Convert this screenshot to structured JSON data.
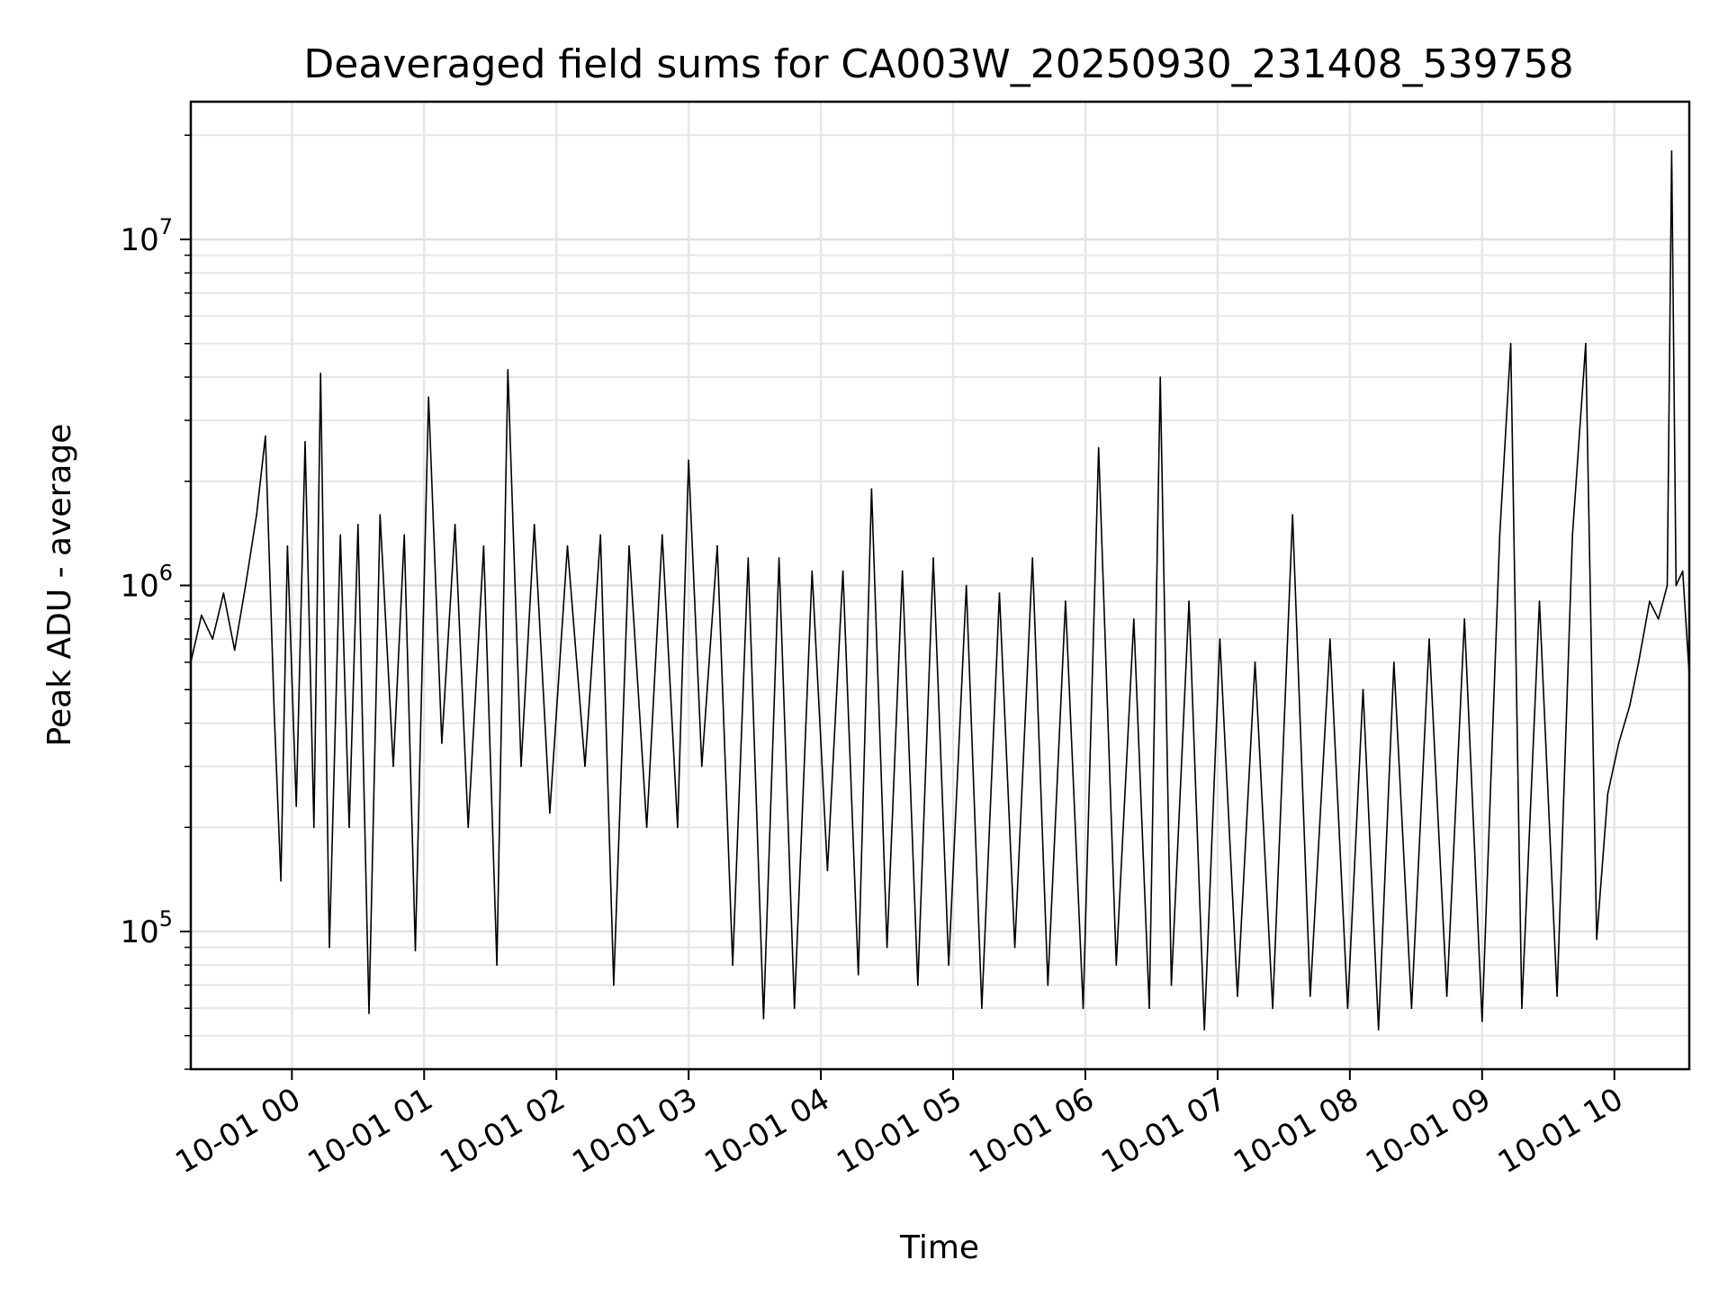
{
  "chart_data": {
    "type": "line",
    "title": "Deaveraged field sums for CA003W_20250930_231408_539758",
    "xlabel": "Time",
    "ylabel": "Peak ADU - average",
    "yscale": "log",
    "ylim": [
      40000,
      25000000
    ],
    "xlim": [
      "2025-09-30T23:14:08",
      "2025-10-01T10:34:00"
    ],
    "grid": true,
    "x_ticks": [
      {
        "value": "2025-10-01T00:00:00",
        "label": "10-01 00"
      },
      {
        "value": "2025-10-01T01:00:00",
        "label": "10-01 01"
      },
      {
        "value": "2025-10-01T02:00:00",
        "label": "10-01 02"
      },
      {
        "value": "2025-10-01T03:00:00",
        "label": "10-01 03"
      },
      {
        "value": "2025-10-01T04:00:00",
        "label": "10-01 04"
      },
      {
        "value": "2025-10-01T05:00:00",
        "label": "10-01 05"
      },
      {
        "value": "2025-10-01T06:00:00",
        "label": "10-01 06"
      },
      {
        "value": "2025-10-01T07:00:00",
        "label": "10-01 07"
      },
      {
        "value": "2025-10-01T08:00:00",
        "label": "10-01 08"
      },
      {
        "value": "2025-10-01T09:00:00",
        "label": "10-01 09"
      },
      {
        "value": "2025-10-01T10:00:00",
        "label": "10-01 10"
      }
    ],
    "y_ticks": [
      {
        "value": 100000,
        "base": "10",
        "exp": "5"
      },
      {
        "value": 1000000,
        "base": "10",
        "exp": "6"
      },
      {
        "value": 10000000,
        "base": "10",
        "exp": "7"
      }
    ],
    "series": [
      {
        "color": "#000000",
        "points": [
          [
            "2025-09-30T23:14:08",
            600000
          ],
          [
            "2025-09-30T23:19:00",
            820000
          ],
          [
            "2025-09-30T23:24:00",
            700000
          ],
          [
            "2025-09-30T23:29:00",
            950000
          ],
          [
            "2025-09-30T23:34:00",
            650000
          ],
          [
            "2025-09-30T23:39:00",
            1000000
          ],
          [
            "2025-09-30T23:44:00",
            1600000
          ],
          [
            "2025-09-30T23:48:00",
            2700000
          ],
          [
            "2025-09-30T23:52:00",
            430000
          ],
          [
            "2025-09-30T23:55:00",
            140000
          ],
          [
            "2025-09-30T23:58:00",
            1300000
          ],
          [
            "2025-10-01T00:02:00",
            230000
          ],
          [
            "2025-10-01T00:06:00",
            2600000
          ],
          [
            "2025-10-01T00:10:00",
            200000
          ],
          [
            "2025-10-01T00:13:00",
            4100000
          ],
          [
            "2025-10-01T00:17:00",
            90000
          ],
          [
            "2025-10-01T00:22:00",
            1400000
          ],
          [
            "2025-10-01T00:26:00",
            200000
          ],
          [
            "2025-10-01T00:30:00",
            1500000
          ],
          [
            "2025-10-01T00:35:00",
            58000
          ],
          [
            "2025-10-01T00:40:00",
            1600000
          ],
          [
            "2025-10-01T00:46:00",
            300000
          ],
          [
            "2025-10-01T00:51:00",
            1400000
          ],
          [
            "2025-10-01T00:56:00",
            88000
          ],
          [
            "2025-10-01T01:02:00",
            3500000
          ],
          [
            "2025-10-01T01:08:00",
            350000
          ],
          [
            "2025-10-01T01:14:00",
            1500000
          ],
          [
            "2025-10-01T01:20:00",
            200000
          ],
          [
            "2025-10-01T01:27:00",
            1300000
          ],
          [
            "2025-10-01T01:33:00",
            80000
          ],
          [
            "2025-10-01T01:38:00",
            4200000
          ],
          [
            "2025-10-01T01:44:00",
            300000
          ],
          [
            "2025-10-01T01:50:00",
            1500000
          ],
          [
            "2025-10-01T01:57:00",
            220000
          ],
          [
            "2025-10-01T02:05:00",
            1300000
          ],
          [
            "2025-10-01T02:13:00",
            300000
          ],
          [
            "2025-10-01T02:20:00",
            1400000
          ],
          [
            "2025-10-01T02:26:00",
            70000
          ],
          [
            "2025-10-01T02:33:00",
            1300000
          ],
          [
            "2025-10-01T02:41:00",
            200000
          ],
          [
            "2025-10-01T02:48:00",
            1400000
          ],
          [
            "2025-10-01T02:55:00",
            200000
          ],
          [
            "2025-10-01T03:00:00",
            2300000
          ],
          [
            "2025-10-01T03:06:00",
            300000
          ],
          [
            "2025-10-01T03:13:00",
            1300000
          ],
          [
            "2025-10-01T03:20:00",
            80000
          ],
          [
            "2025-10-01T03:27:00",
            1200000
          ],
          [
            "2025-10-01T03:34:00",
            56000
          ],
          [
            "2025-10-01T03:41:00",
            1200000
          ],
          [
            "2025-10-01T03:48:00",
            60000
          ],
          [
            "2025-10-01T03:56:00",
            1100000
          ],
          [
            "2025-10-01T04:03:00",
            150000
          ],
          [
            "2025-10-01T04:10:00",
            1100000
          ],
          [
            "2025-10-01T04:17:00",
            75000
          ],
          [
            "2025-10-01T04:23:00",
            1900000
          ],
          [
            "2025-10-01T04:30:00",
            90000
          ],
          [
            "2025-10-01T04:37:00",
            1100000
          ],
          [
            "2025-10-01T04:44:00",
            70000
          ],
          [
            "2025-10-01T04:51:00",
            1200000
          ],
          [
            "2025-10-01T04:58:00",
            80000
          ],
          [
            "2025-10-01T05:06:00",
            1000000
          ],
          [
            "2025-10-01T05:13:00",
            60000
          ],
          [
            "2025-10-01T05:21:00",
            950000
          ],
          [
            "2025-10-01T05:28:00",
            90000
          ],
          [
            "2025-10-01T05:36:00",
            1200000
          ],
          [
            "2025-10-01T05:43:00",
            70000
          ],
          [
            "2025-10-01T05:51:00",
            900000
          ],
          [
            "2025-10-01T05:59:00",
            60000
          ],
          [
            "2025-10-01T06:06:00",
            2500000
          ],
          [
            "2025-10-01T06:14:00",
            80000
          ],
          [
            "2025-10-01T06:22:00",
            800000
          ],
          [
            "2025-10-01T06:29:00",
            60000
          ],
          [
            "2025-10-01T06:34:00",
            4000000
          ],
          [
            "2025-10-01T06:39:00",
            70000
          ],
          [
            "2025-10-01T06:47:00",
            900000
          ],
          [
            "2025-10-01T06:54:00",
            52000
          ],
          [
            "2025-10-01T07:01:00",
            700000
          ],
          [
            "2025-10-01T07:09:00",
            65000
          ],
          [
            "2025-10-01T07:17:00",
            600000
          ],
          [
            "2025-10-01T07:25:00",
            60000
          ],
          [
            "2025-10-01T07:34:00",
            1600000
          ],
          [
            "2025-10-01T07:42:00",
            65000
          ],
          [
            "2025-10-01T07:51:00",
            700000
          ],
          [
            "2025-10-01T07:59:00",
            60000
          ],
          [
            "2025-10-01T08:06:00",
            500000
          ],
          [
            "2025-10-01T08:13:00",
            52000
          ],
          [
            "2025-10-01T08:20:00",
            600000
          ],
          [
            "2025-10-01T08:28:00",
            60000
          ],
          [
            "2025-10-01T08:36:00",
            700000
          ],
          [
            "2025-10-01T08:44:00",
            65000
          ],
          [
            "2025-10-01T08:52:00",
            800000
          ],
          [
            "2025-10-01T09:00:00",
            55000
          ],
          [
            "2025-10-01T09:08:00",
            1400000
          ],
          [
            "2025-10-01T09:13:00",
            5000000
          ],
          [
            "2025-10-01T09:18:00",
            60000
          ],
          [
            "2025-10-01T09:26:00",
            900000
          ],
          [
            "2025-10-01T09:34:00",
            65000
          ],
          [
            "2025-10-01T09:41:00",
            1400000
          ],
          [
            "2025-10-01T09:47:00",
            5000000
          ],
          [
            "2025-10-01T09:52:00",
            95000
          ],
          [
            "2025-10-01T09:57:00",
            250000
          ],
          [
            "2025-10-01T10:02:00",
            350000
          ],
          [
            "2025-10-01T10:07:00",
            450000
          ],
          [
            "2025-10-01T10:11:00",
            600000
          ],
          [
            "2025-10-01T10:16:00",
            900000
          ],
          [
            "2025-10-01T10:20:00",
            800000
          ],
          [
            "2025-10-01T10:24:00",
            1000000
          ],
          [
            "2025-10-01T10:26:00",
            18000000
          ],
          [
            "2025-10-01T10:28:00",
            1000000
          ],
          [
            "2025-10-01T10:31:00",
            1100000
          ],
          [
            "2025-10-01T10:34:00",
            550000
          ]
        ]
      }
    ]
  }
}
